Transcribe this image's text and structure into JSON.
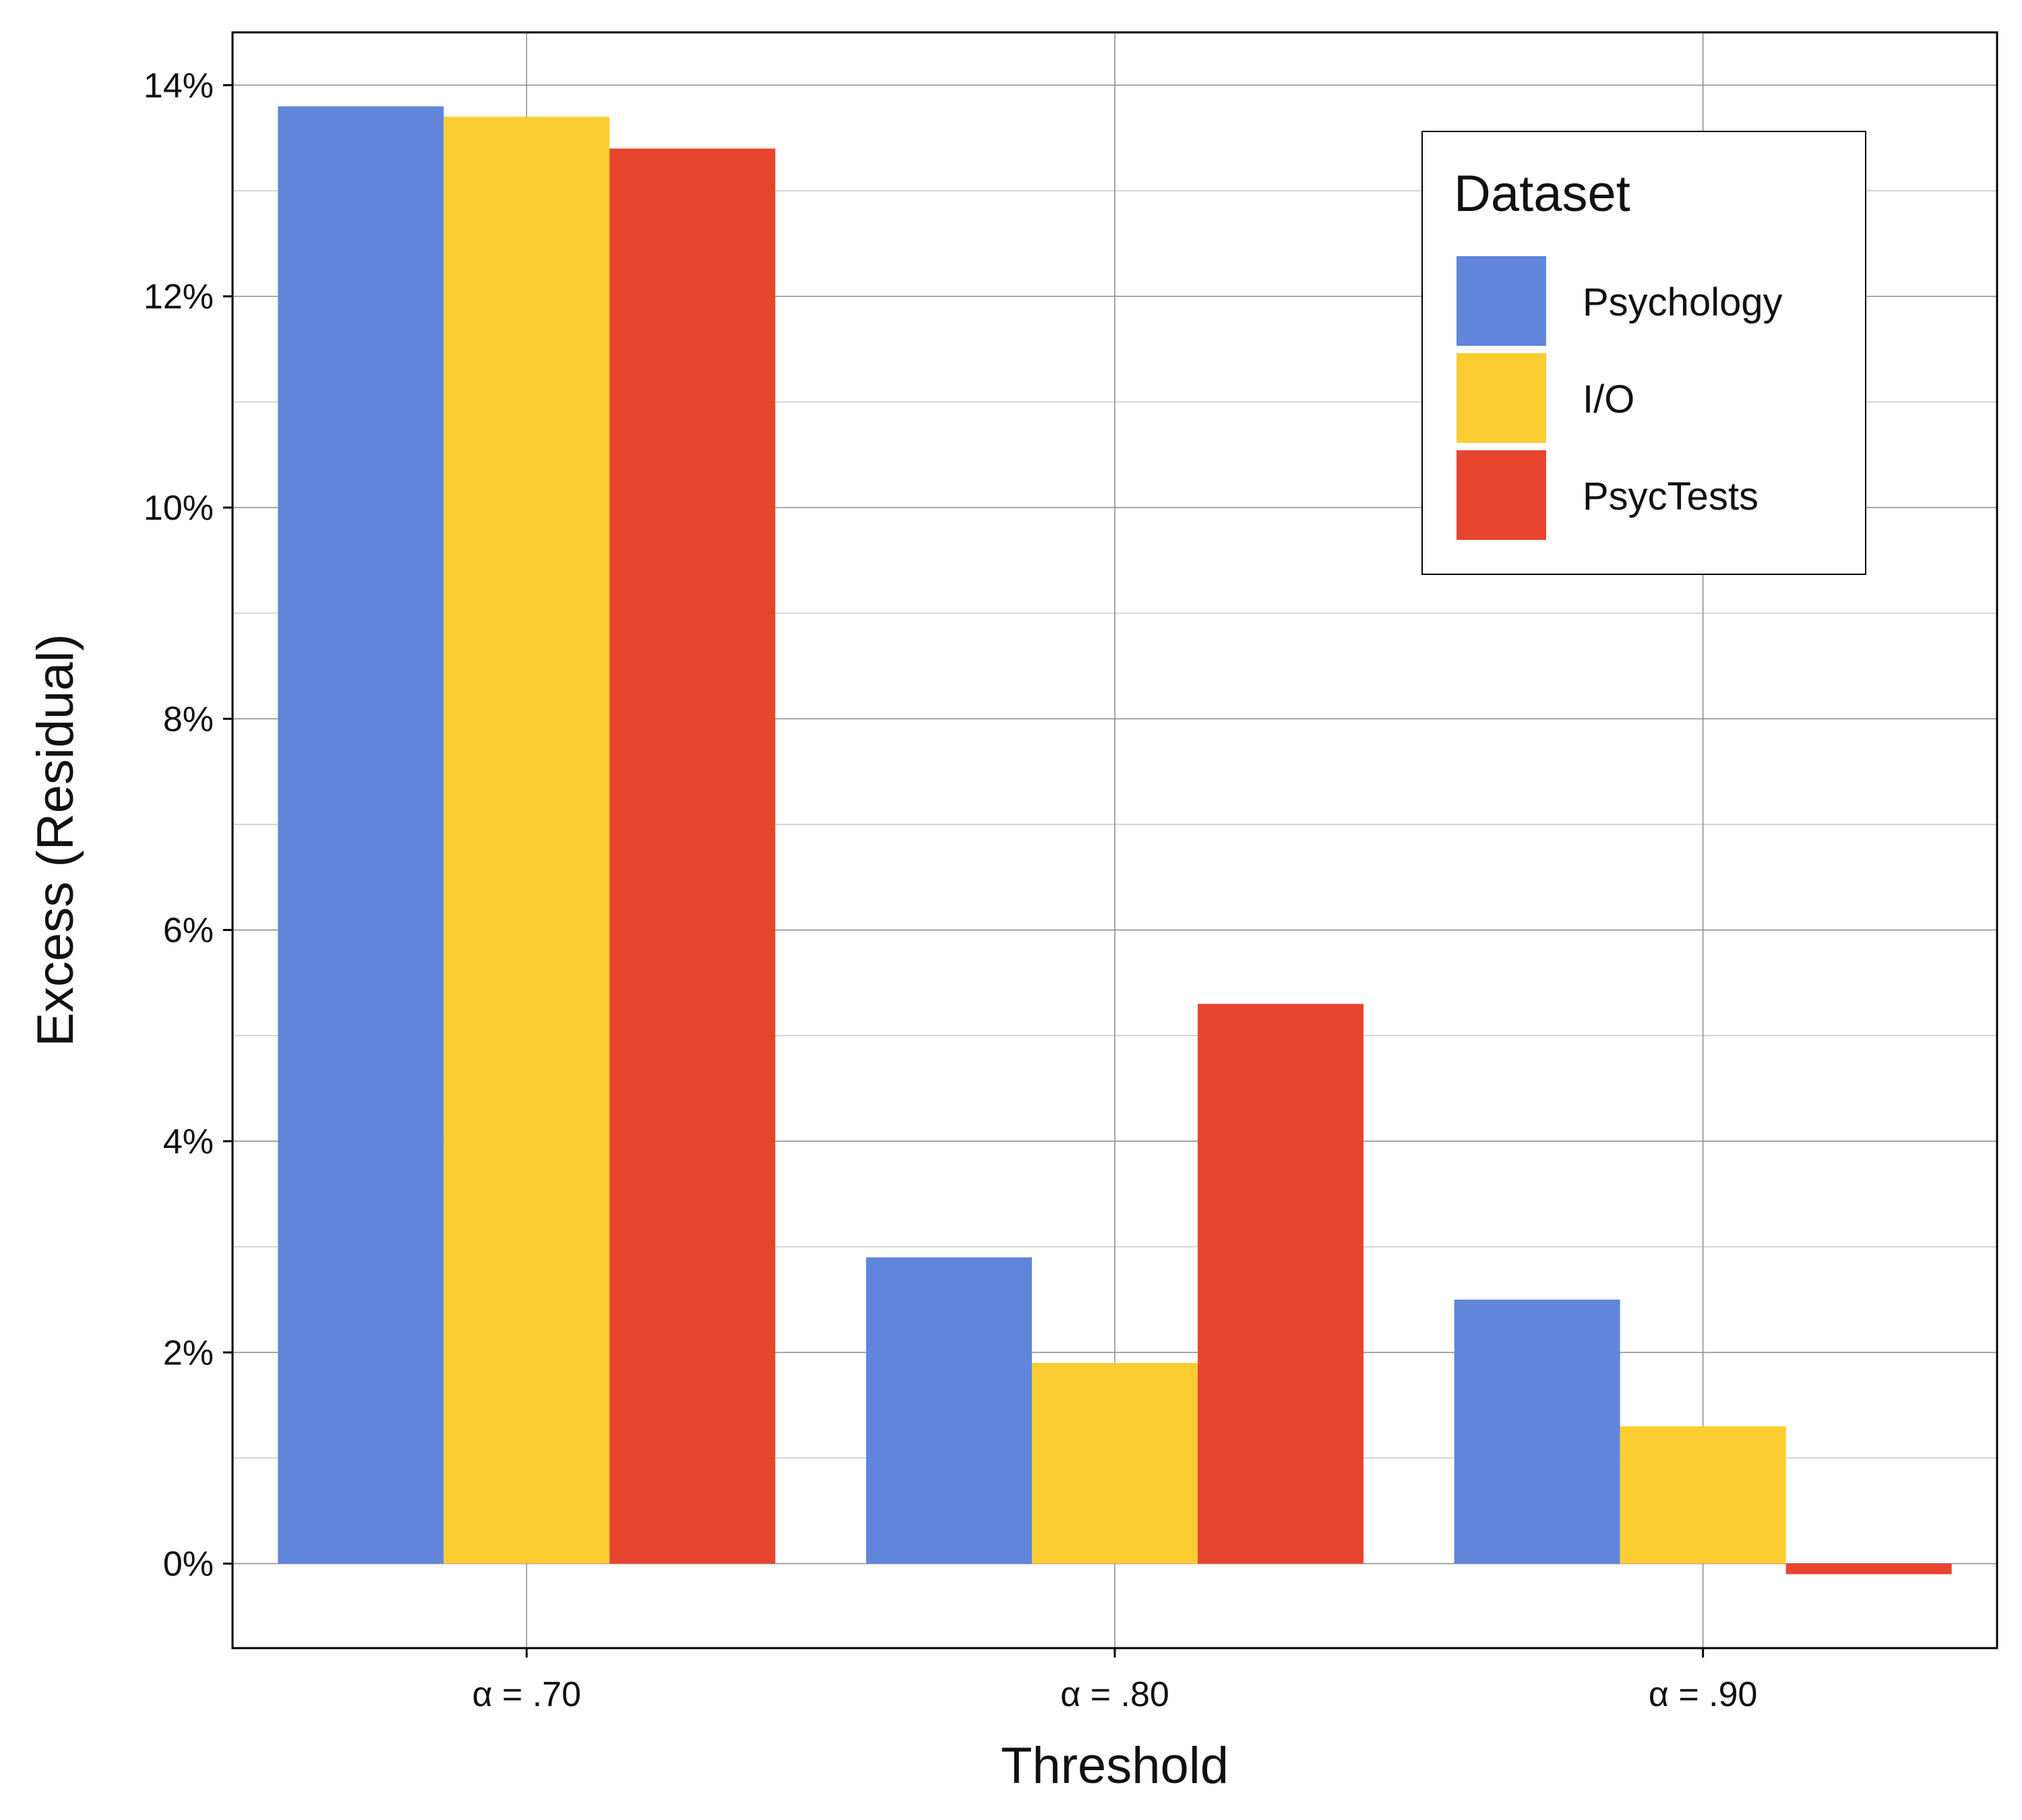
{
  "chart_data": {
    "type": "bar",
    "title": "",
    "xlabel": "Threshold",
    "ylabel": "Excess (Residual)",
    "categories": [
      "α = .70",
      "α = .80",
      "α = .90"
    ],
    "series": [
      {
        "name": "Psychology",
        "color": "#6185DB",
        "values": [
          13.8,
          2.9,
          2.5
        ]
      },
      {
        "name": "I/O",
        "color": "#FCCD30",
        "values": [
          13.7,
          1.9,
          1.3
        ]
      },
      {
        "name": "PsycTests",
        "color": "#E8452F",
        "values": [
          13.4,
          5.3,
          -0.1
        ]
      }
    ],
    "ylim": [
      -0.8,
      14.5
    ],
    "yticks": [
      0,
      2,
      4,
      6,
      8,
      10,
      12,
      14
    ],
    "ytick_labels": [
      "0%",
      "2%",
      "4%",
      "6%",
      "8%",
      "10%",
      "12%",
      "14%"
    ],
    "grid": true,
    "legend": {
      "title": "Dataset",
      "position": "top-right"
    }
  }
}
